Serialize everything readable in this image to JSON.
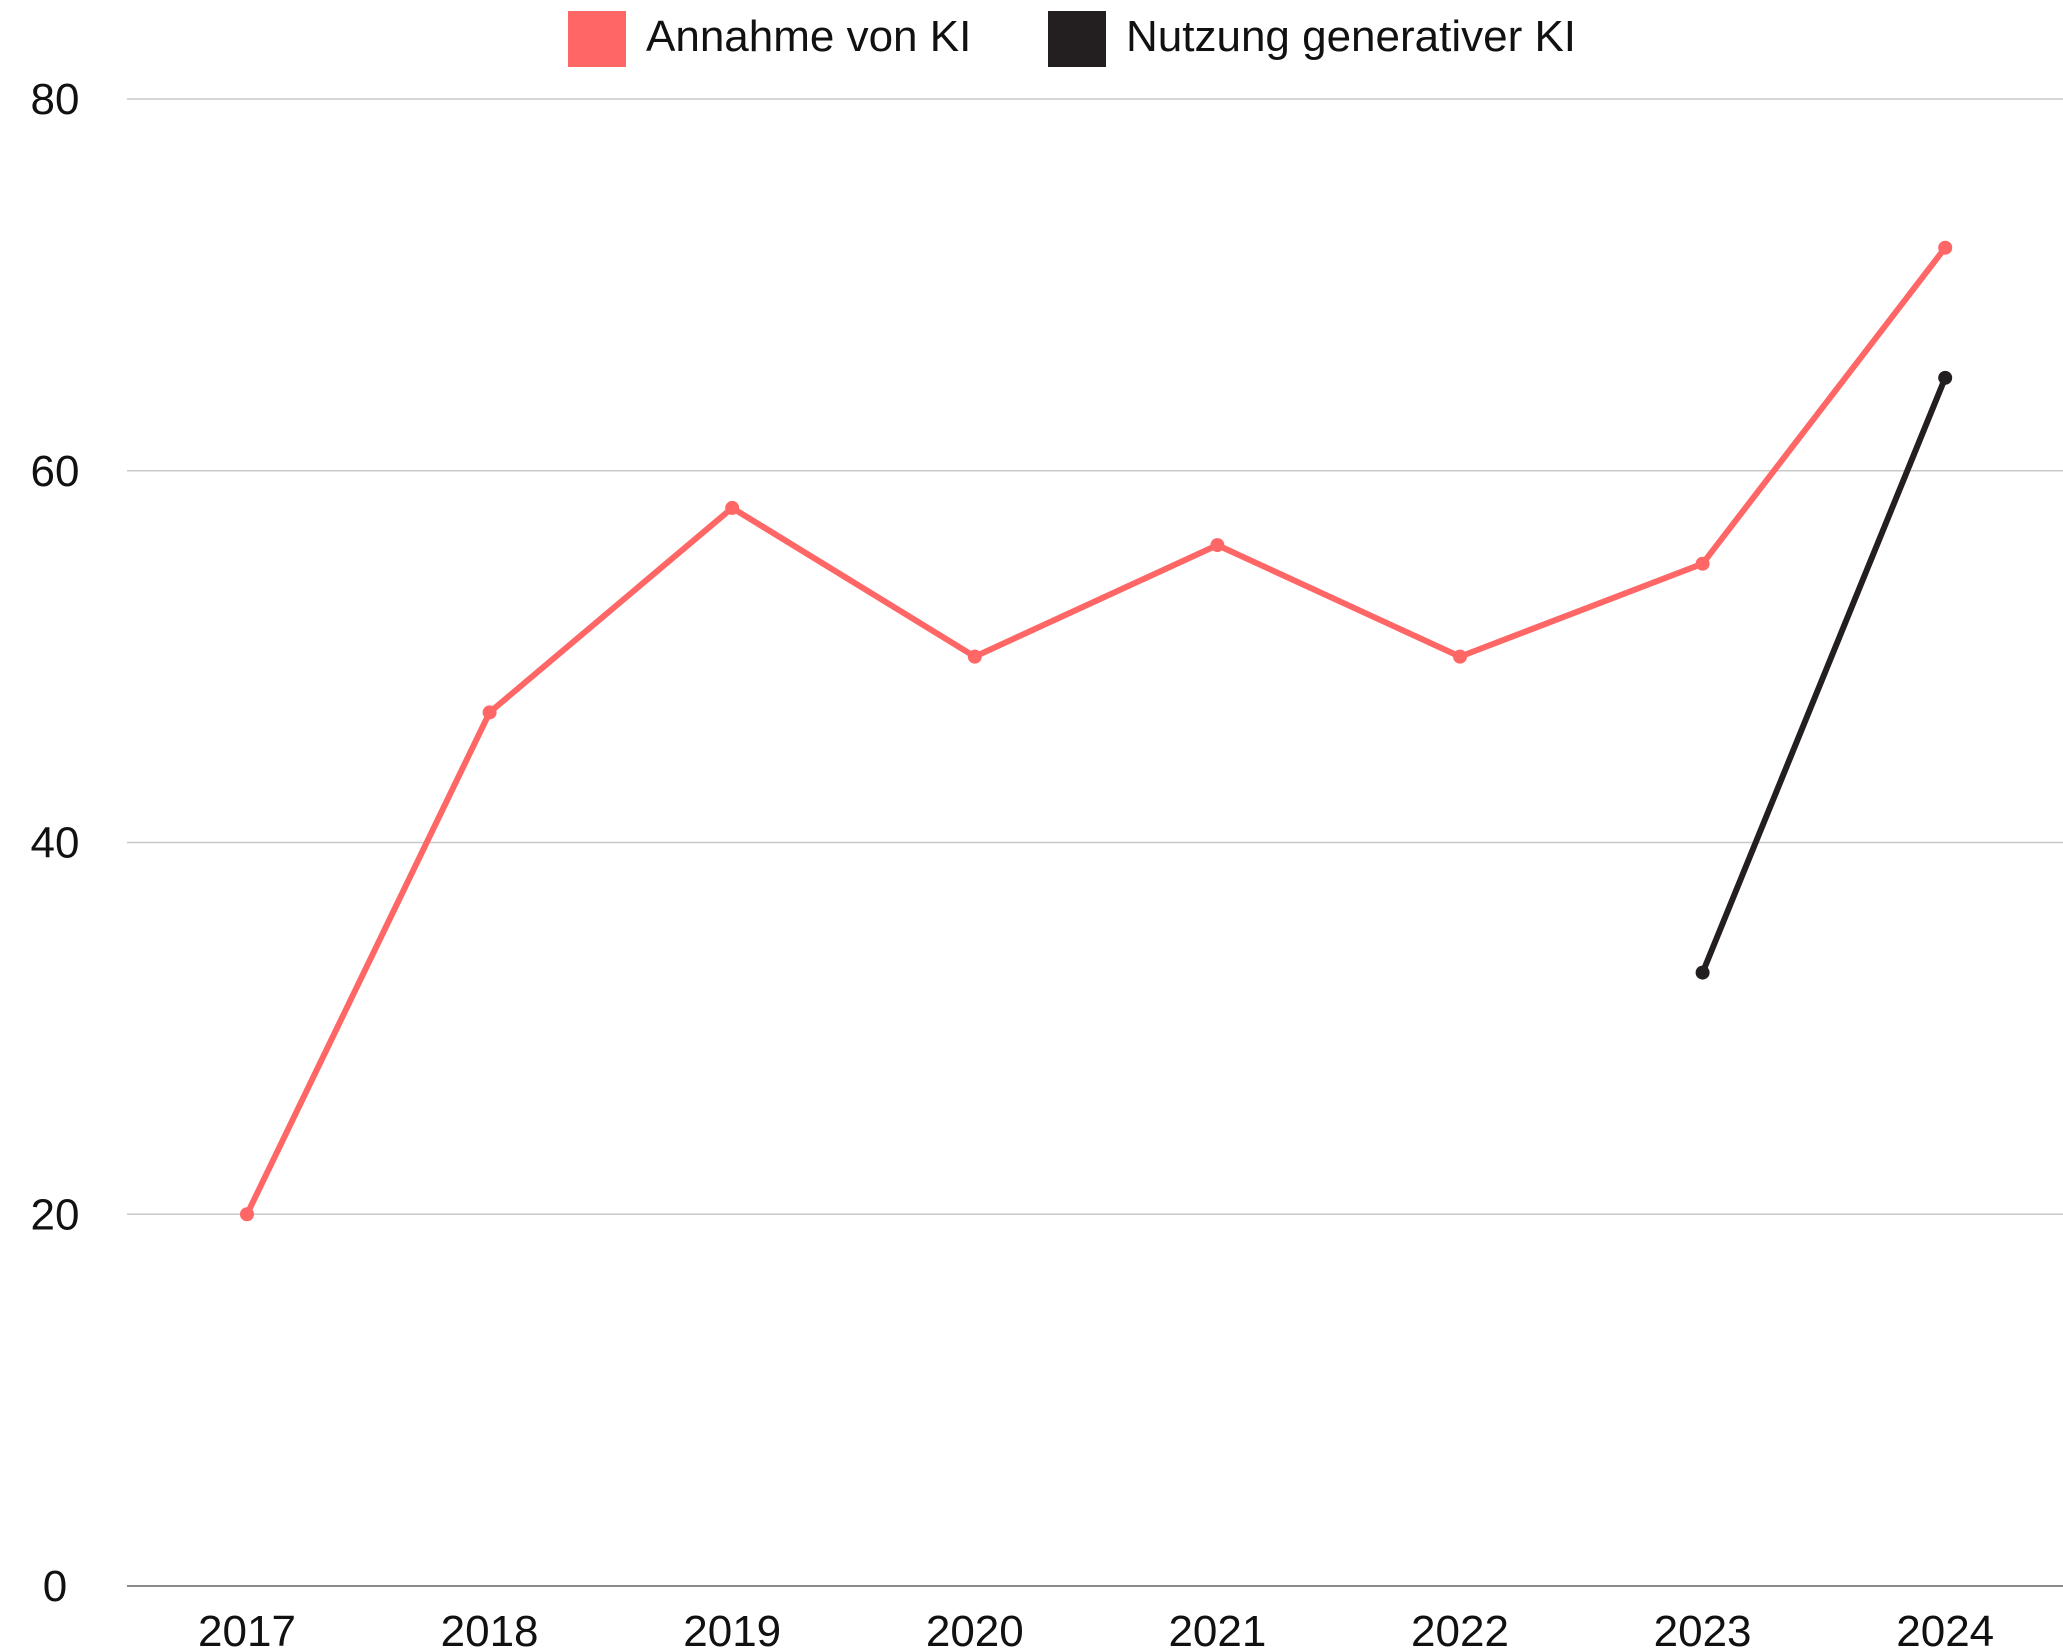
{
  "chart_data": {
    "type": "line",
    "title": "",
    "xlabel": "",
    "ylabel": "",
    "categories": [
      "2017",
      "2018",
      "2019",
      "2020",
      "2021",
      "2022",
      "2023",
      "2024"
    ],
    "ylim": [
      0,
      80
    ],
    "yticks": [
      0,
      20,
      40,
      60,
      80
    ],
    "grid": true,
    "legend_position": "top-center",
    "series": [
      {
        "name": "Annahme von KI",
        "color": "#ff6666",
        "values": [
          20,
          47,
          58,
          50,
          56,
          50,
          55,
          72
        ]
      },
      {
        "name": "Nutzung generativer KI",
        "color": "#231f20",
        "values": [
          null,
          null,
          null,
          null,
          null,
          null,
          33,
          65
        ]
      }
    ]
  }
}
